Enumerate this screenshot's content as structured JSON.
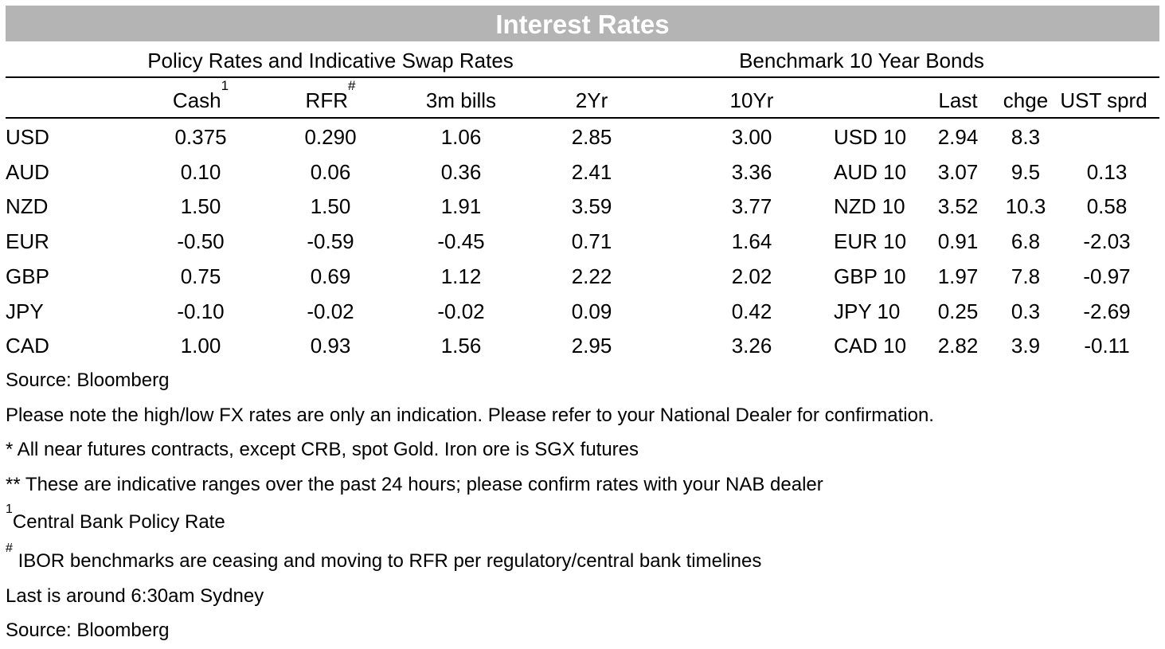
{
  "title": "Interest Rates",
  "left_section_title": "Policy Rates and Indicative Swap Rates",
  "right_section_title": "Benchmark 10 Year Bonds",
  "left_headers": {
    "cash": "Cash",
    "cash_sup": "1",
    "rfr": "RFR",
    "rfr_sup": "#",
    "bills": "3m bills",
    "yr2": "2Yr",
    "yr10": "10Yr"
  },
  "right_headers": {
    "last": "Last",
    "chge": "chge",
    "ust": "UST sprd"
  },
  "rows": [
    {
      "ccy": "USD",
      "cash": "0.375",
      "rfr": "0.290",
      "bills": "1.06",
      "yr2": "2.85",
      "yr10": "3.00",
      "bond": "USD 10",
      "last": "2.94",
      "chge": "8.3",
      "ust": ""
    },
    {
      "ccy": "AUD",
      "cash": "0.10",
      "rfr": "0.06",
      "bills": "0.36",
      "yr2": "2.41",
      "yr10": "3.36",
      "bond": "AUD 10",
      "last": "3.07",
      "chge": "9.5",
      "ust": "0.13"
    },
    {
      "ccy": "NZD",
      "cash": "1.50",
      "rfr": "1.50",
      "bills": "1.91",
      "yr2": "3.59",
      "yr10": "3.77",
      "bond": "NZD 10",
      "last": "3.52",
      "chge": "10.3",
      "ust": "0.58"
    },
    {
      "ccy": "EUR",
      "cash": "-0.50",
      "rfr": "-0.59",
      "bills": "-0.45",
      "yr2": "0.71",
      "yr10": "1.64",
      "bond": "EUR 10",
      "last": "0.91",
      "chge": "6.8",
      "ust": "-2.03"
    },
    {
      "ccy": "GBP",
      "cash": "0.75",
      "rfr": "0.69",
      "bills": "1.12",
      "yr2": "2.22",
      "yr10": "2.02",
      "bond": "GBP 10",
      "last": "1.97",
      "chge": "7.8",
      "ust": "-0.97"
    },
    {
      "ccy": "JPY",
      "cash": "-0.10",
      "rfr": "-0.02",
      "bills": "-0.02",
      "yr2": "0.09",
      "yr10": "0.42",
      "bond": "JPY 10",
      "last": "0.25",
      "chge": "0.3",
      "ust": "-2.69"
    },
    {
      "ccy": "CAD",
      "cash": "1.00",
      "rfr": "0.93",
      "bills": "1.56",
      "yr2": "2.95",
      "yr10": "3.26",
      "bond": "CAD 10",
      "last": "2.82",
      "chge": "3.9",
      "ust": "-0.11"
    }
  ],
  "footnotes": {
    "source1": "Source: Bloomberg",
    "fx_note": "Please note the high/low FX rates are only an indication. Please refer to your National Dealer for confirmation.",
    "futures_note": "* All near futures contracts, except CRB, spot Gold.  Iron ore is SGX futures",
    "ranges_note": "** These are indicative ranges over the past 24 hours; please confirm rates with your NAB dealer",
    "central_sup": "1",
    "central_note": "Central Bank Policy Rate",
    "ibor_sup": "#",
    "ibor_note": " IBOR benchmarks are ceasing and moving to RFR per regulatory/central bank timelines",
    "last_note": "Last is around 6:30am Sydney",
    "source2": "Source: Bloomberg"
  }
}
